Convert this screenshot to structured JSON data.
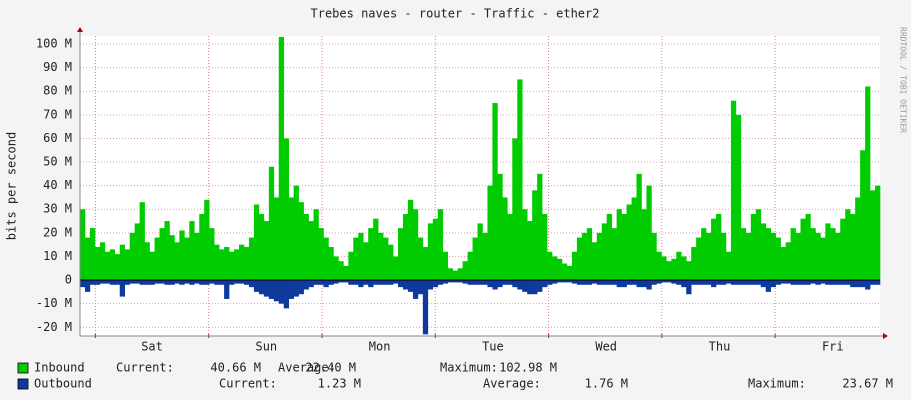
{
  "chart_data": {
    "type": "area",
    "title": "Trebes naves - router - Traffic - ether2",
    "ylabel": "bits per second",
    "watermark": "RRDTOOL / TOBI OETIKER",
    "ylim": [
      -23.7,
      103.4
    ],
    "yticks": [
      {
        "value": -20,
        "label": "-20 M"
      },
      {
        "value": -10,
        "label": "-10 M"
      },
      {
        "value": 0,
        "label": "0"
      },
      {
        "value": 10,
        "label": "10 M"
      },
      {
        "value": 20,
        "label": "20 M"
      },
      {
        "value": 30,
        "label": "30 M"
      },
      {
        "value": 40,
        "label": "40 M"
      },
      {
        "value": 50,
        "label": "50 M"
      },
      {
        "value": 60,
        "label": "60 M"
      },
      {
        "value": 70,
        "label": "70 M"
      },
      {
        "value": 80,
        "label": "80 M"
      },
      {
        "value": 90,
        "label": "90 M"
      },
      {
        "value": 100,
        "label": "100 M"
      }
    ],
    "xlim": [
      0,
      160
    ],
    "xticks": [
      {
        "value": 14,
        "label": "Sat"
      },
      {
        "value": 37,
        "label": "Sun"
      },
      {
        "value": 59.8,
        "label": "Mon"
      },
      {
        "value": 82.6,
        "label": "Tue"
      },
      {
        "value": 105.4,
        "label": "Wed"
      },
      {
        "value": 128.2,
        "label": "Thu"
      },
      {
        "value": 151,
        "label": "Fri"
      }
    ],
    "xgrid": [
      2.6,
      25.4,
      48.2,
      71,
      93.8,
      116.6,
      139.4
    ],
    "grid": true,
    "series": [
      {
        "name": "Inbound",
        "color": "#00cc00",
        "legend": [
          {
            "label": "Current:",
            "value": "40.66 M"
          },
          {
            "label": "Average:",
            "value": "22.40 M"
          },
          {
            "label": "Maximum:",
            "value": "102.98 M"
          }
        ],
        "values": [
          30,
          18,
          22,
          14,
          16,
          12,
          13,
          11,
          15,
          13,
          20,
          24,
          33,
          16,
          12,
          18,
          22,
          25,
          19,
          16,
          21,
          18,
          25,
          20,
          28,
          34,
          22,
          15,
          13,
          14,
          12,
          13,
          15,
          14,
          18,
          32,
          28,
          25,
          48,
          35,
          103,
          60,
          35,
          40,
          33,
          28,
          25,
          30,
          22,
          18,
          14,
          10,
          8,
          6,
          12,
          18,
          20,
          16,
          22,
          26,
          20,
          18,
          15,
          10,
          22,
          28,
          34,
          30,
          18,
          14,
          24,
          26,
          30,
          12,
          5,
          4,
          5,
          8,
          12,
          18,
          24,
          20,
          40,
          75,
          45,
          35,
          28,
          60,
          85,
          30,
          25,
          38,
          45,
          28,
          12,
          10,
          9,
          7,
          6,
          12,
          18,
          20,
          22,
          16,
          20,
          24,
          28,
          22,
          30,
          28,
          32,
          35,
          45,
          30,
          40,
          20,
          12,
          10,
          8,
          9,
          12,
          10,
          8,
          14,
          18,
          22,
          20,
          26,
          28,
          20,
          12,
          76,
          70,
          22,
          20,
          28,
          30,
          24,
          22,
          20,
          18,
          14,
          16,
          22,
          20,
          26,
          28,
          22,
          20,
          18,
          24,
          22,
          20,
          26,
          30,
          28,
          35,
          55,
          82,
          38,
          40
        ]
      },
      {
        "name": "Outbound",
        "color": "#0d3a9c",
        "legend": [
          {
            "label": "Current:",
            "value": "1.23 M"
          },
          {
            "label": "Average:",
            "value": "1.76 M"
          },
          {
            "label": "Maximum:",
            "value": "23.67 M"
          }
        ],
        "values": [
          -3,
          -5,
          -2,
          -2,
          -1.5,
          -1.5,
          -2,
          -2,
          -7,
          -2,
          -1.5,
          -1.5,
          -2,
          -2,
          -2,
          -1.5,
          -1.5,
          -2,
          -2,
          -1.5,
          -2,
          -1.5,
          -2,
          -1.5,
          -2,
          -2,
          -1.5,
          -2,
          -2,
          -8,
          -2,
          -1.5,
          -1.5,
          -2,
          -3,
          -5,
          -6,
          -7,
          -8,
          -9,
          -10,
          -12,
          -8,
          -7,
          -6,
          -4,
          -3,
          -2,
          -2,
          -3,
          -2,
          -1.5,
          -1,
          -1,
          -2,
          -2,
          -3,
          -2,
          -3,
          -2,
          -2,
          -2,
          -2,
          -1.5,
          -3,
          -4,
          -5,
          -8,
          -6,
          -23,
          -4,
          -3,
          -2,
          -1.5,
          -1,
          -1,
          -1,
          -1.5,
          -2,
          -2,
          -2,
          -2,
          -3,
          -4,
          -3,
          -2,
          -2,
          -3,
          -4,
          -5,
          -6,
          -6,
          -5,
          -3,
          -2,
          -1.5,
          -1,
          -1,
          -1,
          -1.5,
          -2,
          -2,
          -2,
          -1.5,
          -2,
          -2,
          -2,
          -2,
          -3,
          -3,
          -2,
          -2,
          -3,
          -3,
          -4,
          -2,
          -1.5,
          -1,
          -1,
          -1.5,
          -2,
          -3,
          -6,
          -2,
          -2,
          -2,
          -2,
          -3,
          -2,
          -2,
          -1.5,
          -2,
          -2,
          -2,
          -2,
          -2,
          -2,
          -3,
          -5,
          -3,
          -2,
          -1.5,
          -1.5,
          -2,
          -2,
          -2,
          -2,
          -1.5,
          -2,
          -1.5,
          -2,
          -2,
          -2,
          -2,
          -2,
          -3,
          -3,
          -3,
          -4,
          -2,
          -2
        ]
      }
    ]
  }
}
